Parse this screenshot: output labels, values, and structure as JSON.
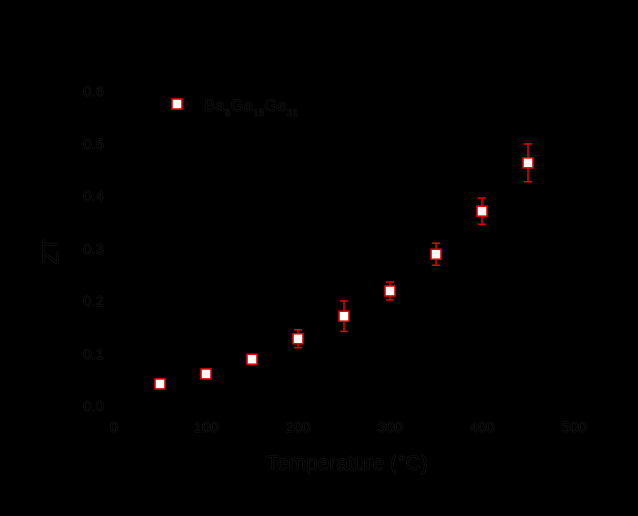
{
  "chart_data": {
    "type": "scatter",
    "title": "",
    "xlabel": "Temperature (°C)",
    "ylabel": "ZT",
    "xlim": [
      0,
      500
    ],
    "ylim": [
      0.0,
      0.6
    ],
    "x_ticks": [
      "0",
      "100",
      "200",
      "300",
      "400",
      "500"
    ],
    "y_ticks": [
      "0.0",
      "0.1",
      "0.2",
      "0.3",
      "0.4",
      "0.5",
      "0.6"
    ],
    "grid": false,
    "legend_position": "upper left",
    "series": [
      {
        "name": "Ba8Ga15Ge31",
        "marker": "open-square",
        "marker_edge_color": "#e00000",
        "marker_face_color": "#ffffff",
        "error_bar_color": "#e00000",
        "x": [
          50,
          100,
          150,
          200,
          250,
          300,
          350,
          400,
          450
        ],
        "y": [
          0.044,
          0.063,
          0.091,
          0.13,
          0.173,
          0.221,
          0.291,
          0.373,
          0.465
        ],
        "y_err": [
          0.004,
          0.0,
          0.003,
          0.017,
          0.029,
          0.017,
          0.021,
          0.025,
          0.036
        ]
      }
    ]
  },
  "legend": {
    "base_parts": [
      "Ba",
      "Ga",
      "Ge"
    ],
    "subscripts": [
      "8",
      "15",
      "31"
    ]
  },
  "colors": {
    "background": "#000000",
    "marker_edge": "#e00000",
    "marker_fill": "#ffffff"
  }
}
